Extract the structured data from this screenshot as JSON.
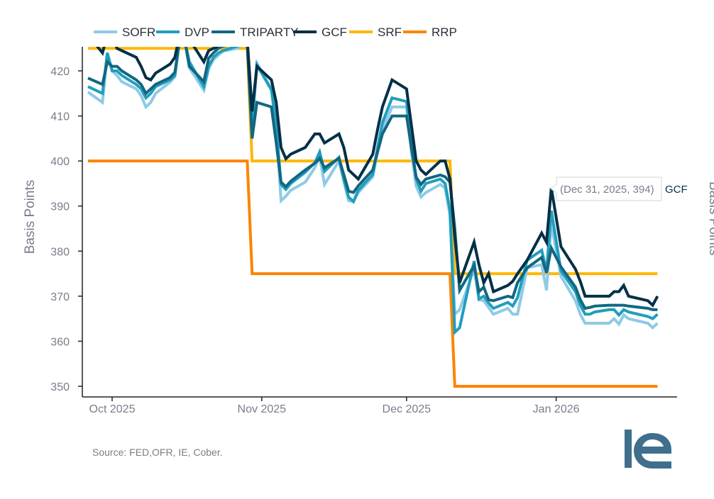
{
  "chart_data": {
    "type": "line",
    "title": "",
    "xlabel": "",
    "ylabel": "Basis Points",
    "right_ylabel": "Basis Points",
    "ylim": [
      347.5,
      425.5
    ],
    "yticks": [
      350,
      360,
      370,
      380,
      390,
      400,
      410,
      420
    ],
    "xticks": [
      {
        "date": "2025-10-01",
        "label": "Oct 2025"
      },
      {
        "date": "2025-11-01",
        "label": "Nov 2025"
      },
      {
        "date": "2025-12-01",
        "label": "Dec 2025"
      },
      {
        "date": "2026-01-01",
        "label": "Jan 2026"
      }
    ],
    "grid": false,
    "legend_position": "top",
    "dates": [
      "2025-09-26",
      "2025-09-29",
      "2025-09-30",
      "2025-10-01",
      "2025-10-02",
      "2025-10-03",
      "2025-10-06",
      "2025-10-07",
      "2025-10-08",
      "2025-10-09",
      "2025-10-10",
      "2025-10-13",
      "2025-10-14",
      "2025-10-15",
      "2025-10-16",
      "2025-10-17",
      "2025-10-20",
      "2025-10-21",
      "2025-10-22",
      "2025-10-23",
      "2025-10-24",
      "2025-10-27",
      "2025-10-28",
      "2025-10-29",
      "2025-10-30",
      "2025-10-31",
      "2025-11-03",
      "2025-11-04",
      "2025-11-05",
      "2025-11-06",
      "2025-11-07",
      "2025-11-10",
      "2025-11-12",
      "2025-11-13",
      "2025-11-14",
      "2025-11-17",
      "2025-11-18",
      "2025-11-19",
      "2025-11-20",
      "2025-11-21",
      "2025-11-24",
      "2025-11-25",
      "2025-11-26",
      "2025-11-28",
      "2025-12-01",
      "2025-12-02",
      "2025-12-03",
      "2025-12-04",
      "2025-12-05",
      "2025-12-08",
      "2025-12-09",
      "2025-12-10",
      "2025-12-11",
      "2025-12-12",
      "2025-12-15",
      "2025-12-16",
      "2025-12-17",
      "2025-12-18",
      "2025-12-19",
      "2025-12-22",
      "2025-12-23",
      "2025-12-24",
      "2025-12-26",
      "2025-12-29",
      "2025-12-30",
      "2025-12-31",
      "2026-01-02",
      "2026-01-05",
      "2026-01-06",
      "2026-01-07",
      "2026-01-08",
      "2026-01-09",
      "2026-01-12",
      "2026-01-13",
      "2026-01-14",
      "2026-01-15",
      "2026-01-16",
      "2026-01-20",
      "2026-01-21",
      "2026-01-22"
    ],
    "series": [
      {
        "name": "SOFR",
        "color": "#8ecae6",
        "values": [
          415.3,
          413,
          424,
          420,
          419,
          417.6,
          416,
          414.5,
          412,
          413,
          415,
          417.5,
          418.7,
          427,
          427,
          420.7,
          415.7,
          420.5,
          422.5,
          423.5,
          424.4,
          425,
          426,
          426,
          410,
          421.7,
          416,
          407,
          391.2,
          392.2,
          393.5,
          395.3,
          398.5,
          401,
          394.8,
          400,
          395.5,
          391.2,
          391,
          393,
          396.5,
          402,
          407,
          412,
          412,
          402,
          394.4,
          392,
          393,
          394.8,
          394,
          388,
          366,
          367,
          376,
          369.2,
          369,
          367.5,
          366,
          367.3,
          366,
          366,
          376.3,
          377,
          371.3,
          386,
          374.4,
          369,
          366,
          364,
          364,
          364,
          364,
          365,
          363.8,
          365.8,
          365,
          364,
          363,
          364
        ]
      },
      {
        "name": "DVP",
        "color": "#219ebc",
        "values": [
          416.5,
          415,
          424,
          420,
          420,
          419,
          417,
          416,
          414,
          415,
          416.5,
          418,
          419,
          427,
          427,
          422,
          416.5,
          421,
          423,
          424,
          424.5,
          425.5,
          426,
          426,
          408,
          421.3,
          415.8,
          408,
          394.8,
          393.7,
          395,
          397.5,
          399.6,
          402,
          397.7,
          400.8,
          396,
          392,
          391,
          393.5,
          397,
          403,
          408.5,
          414,
          413.2,
          404,
          396,
          393.3,
          395,
          396,
          395,
          389,
          362,
          363,
          377.8,
          369.4,
          370,
          368.5,
          367.3,
          368.6,
          367.8,
          369.7,
          378,
          380.2,
          375.5,
          389,
          375.6,
          371,
          368,
          366,
          366,
          366.5,
          367,
          367,
          365.8,
          367,
          366.5,
          365.5,
          365,
          366
        ]
      },
      {
        "name": "TRIPARTY",
        "color": "#126782",
        "values": [
          418.4,
          417,
          422,
          421,
          421,
          420,
          418,
          417,
          415,
          416,
          417,
          418.5,
          419.7,
          427,
          427,
          421,
          417.6,
          422.8,
          424,
          425,
          425.5,
          426,
          426,
          426,
          405,
          413,
          412,
          404,
          395.3,
          394.3,
          395.5,
          398,
          399.5,
          400.6,
          398.5,
          400.6,
          397,
          393.3,
          393,
          394.5,
          398,
          402,
          406,
          410,
          410,
          403,
          396.4,
          394.8,
          396,
          396.9,
          396.5,
          395.3,
          385,
          371.3,
          376.8,
          371,
          372,
          369.2,
          369,
          370,
          369.7,
          373,
          376.3,
          378.6,
          375.2,
          380.7,
          376.5,
          372,
          369.2,
          367.3,
          367.5,
          367.8,
          368,
          368,
          368,
          368,
          367.8,
          367.3,
          367,
          367
        ]
      },
      {
        "name": "GCF",
        "color": "#023047",
        "values": [
          428,
          424,
          428,
          428,
          425,
          424.5,
          423,
          421,
          418.5,
          418,
          419.5,
          421.5,
          423,
          428,
          428,
          427,
          422,
          424.5,
          425,
          425.5,
          426,
          427,
          427,
          427,
          411,
          421,
          418,
          413,
          403,
          400.5,
          401.5,
          403,
          406,
          406,
          404,
          406,
          403,
          398,
          397,
          396,
          401.5,
          407,
          412,
          418,
          416,
          408,
          400,
          398,
          397,
          400,
          400,
          396,
          383,
          373,
          382,
          377,
          373,
          375,
          371,
          372.4,
          373.3,
          375,
          378,
          384,
          382,
          394,
          381,
          376,
          373.3,
          370,
          370,
          370,
          370,
          371,
          371,
          372.4,
          370,
          369,
          368,
          370
        ]
      },
      {
        "name": "SRF",
        "color": "#ffb703",
        "steps": [
          {
            "from": "2025-09-26",
            "to": "2025-10-29",
            "value": 425
          },
          {
            "from": "2025-10-30",
            "to": "2025-12-10",
            "value": 400
          },
          {
            "from": "2025-12-11",
            "to": "2026-01-22",
            "value": 375
          }
        ]
      },
      {
        "name": "RRP",
        "color": "#fb8500",
        "steps": [
          {
            "from": "2025-09-26",
            "to": "2025-10-29",
            "value": 400
          },
          {
            "from": "2025-10-30",
            "to": "2025-12-10",
            "value": 375
          },
          {
            "from": "2025-12-11",
            "to": "2026-01-22",
            "value": 350
          }
        ]
      }
    ],
    "tooltip": {
      "text": "(Dec 31, 2025, 394)",
      "series": "GCF",
      "date": "2025-12-31",
      "value": 394
    },
    "source": "Source: FED,OFR, IE, Cober.",
    "logo_text": "ie",
    "logo_color": "#3f6f8d"
  }
}
